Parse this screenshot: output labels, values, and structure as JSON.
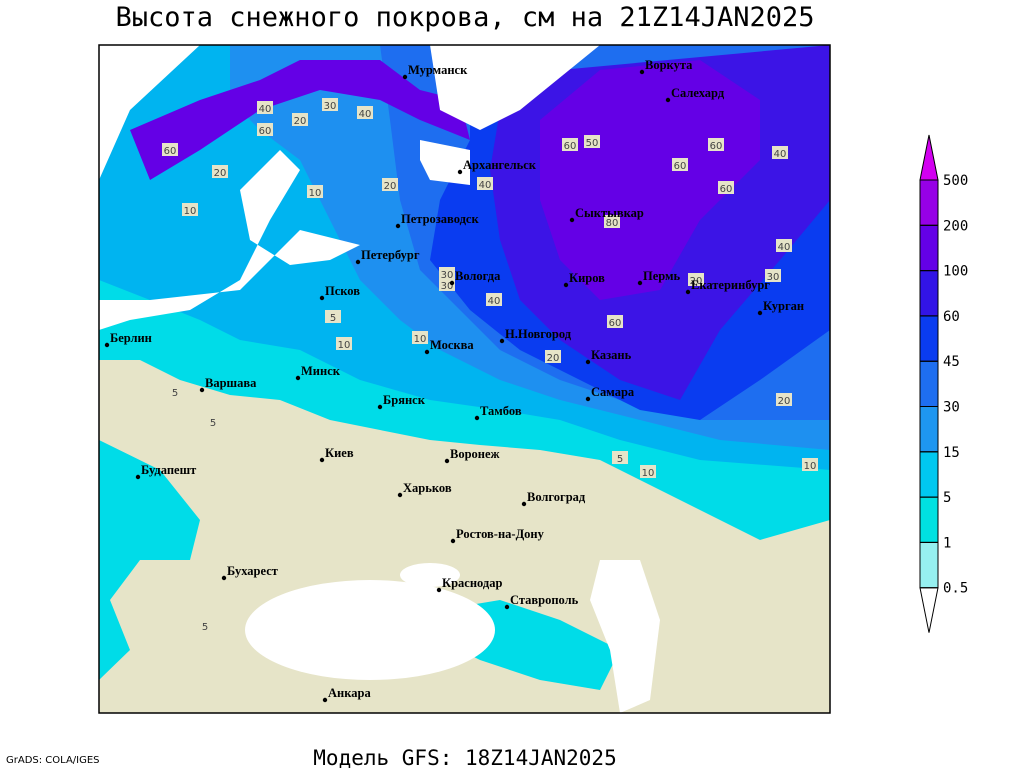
{
  "title": "Высота снежного покрова, см на 21Z14JAN2025",
  "model": "Модель GFS: 18Z14JAN2025",
  "credit": "GrADS: COLA/IGES",
  "cities": [
    "Мурманск",
    "Воркута",
    "Салехард",
    "Архангельск",
    "Сыктывкар",
    "Петрозаводск",
    "Петербург",
    "Вологда",
    "Киров",
    "Пермь",
    "Екатеринбург",
    "Курган",
    "Псков",
    "Берлин",
    "Москва",
    "Н.Новгород",
    "Казань",
    "Минск",
    "Варшава",
    "Брянск",
    "Тамбов",
    "Самара",
    "Киев",
    "Воронеж",
    "Будапешт",
    "Харьков",
    "Волгоград",
    "Ростов-на-Дону",
    "Бухарест",
    "Краснодар",
    "Ставрополь",
    "Анкара"
  ],
  "contour_labels": [
    60,
    40,
    30,
    60,
    20,
    10,
    40,
    20,
    60,
    10,
    20,
    50,
    40,
    80,
    60,
    60,
    40,
    60,
    30,
    40,
    20,
    40,
    30,
    30,
    60,
    10,
    5,
    10,
    5,
    5,
    20,
    20,
    10,
    5,
    5,
    10
  ],
  "colorbar": {
    "levels": [
      0.5,
      1,
      5,
      15,
      30,
      45,
      60,
      100,
      200,
      500
    ],
    "colors": [
      "#ffffff",
      "#96f0f0",
      "#00e1e1",
      "#00c8f0",
      "#1e96f0",
      "#1e6ef0",
      "#0a3cf0",
      "#3214e6",
      "#6400e6",
      "#9600e6",
      "#d200f0"
    ]
  }
}
